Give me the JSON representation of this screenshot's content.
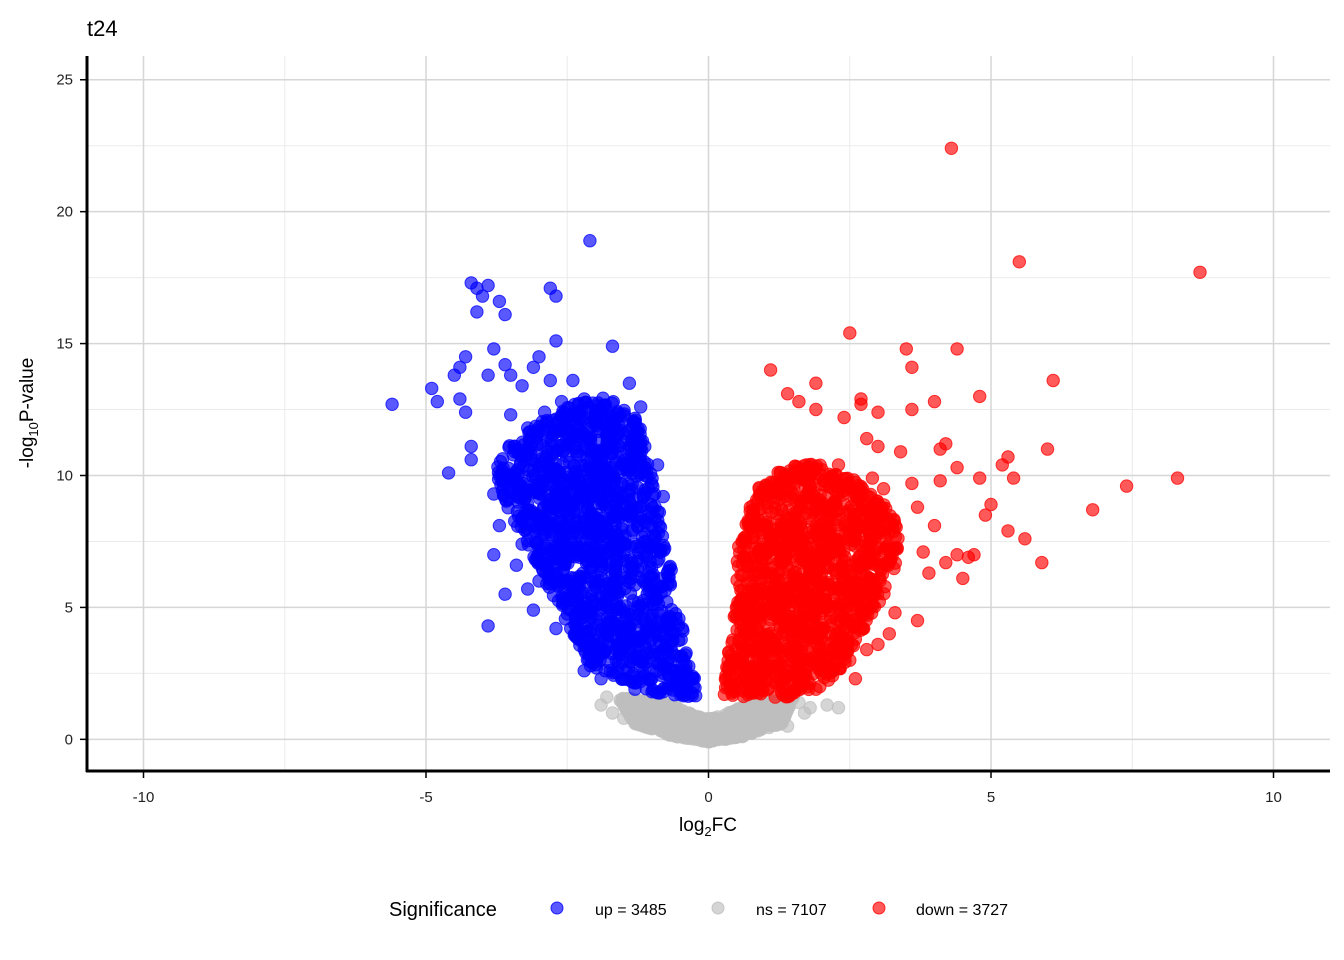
{
  "chart_data": {
    "type": "scatter",
    "title": "t24",
    "xlabel": {
      "base": "log",
      "sub": "2",
      "rest": "FC"
    },
    "ylabel": {
      "base": "-log",
      "sub": "10",
      "rest": "P-value"
    },
    "xlim": [
      -11,
      11
    ],
    "ylim": [
      -1.2,
      25.9
    ],
    "xticks": [
      -10,
      -5,
      0,
      5,
      10
    ],
    "xtick_labels": [
      "-10",
      "-5",
      "0",
      "5",
      "10"
    ],
    "yticks": [
      0,
      5,
      10,
      15,
      20,
      25
    ],
    "ytick_labels": [
      "0",
      "5",
      "10",
      "15",
      "20",
      "25"
    ],
    "grid": true,
    "legend": {
      "title": "Significance",
      "placement": "bottom",
      "entries": [
        {
          "label": "up = 3485",
          "color": "#0000ff"
        },
        {
          "label": "ns = 7107",
          "color": "#bebebe"
        },
        {
          "label": "down = 3727",
          "color": "#ff0000"
        }
      ]
    },
    "series": [
      {
        "name": "up = 3485",
        "color": "#0000ff",
        "count": 3485,
        "outliers": [
          [
            -5.6,
            12.7
          ],
          [
            -4.9,
            13.3
          ],
          [
            -4.8,
            12.8
          ],
          [
            -4.6,
            10.1
          ],
          [
            -4.5,
            13.8
          ],
          [
            -4.4,
            14.1
          ],
          [
            -4.3,
            14.5
          ],
          [
            -4.3,
            12.4
          ],
          [
            -4.2,
            17.3
          ],
          [
            -4.1,
            17.1
          ],
          [
            -4.1,
            16.2
          ],
          [
            -4.0,
            16.8
          ],
          [
            -3.9,
            17.2
          ],
          [
            -3.9,
            13.8
          ],
          [
            -3.8,
            14.8
          ],
          [
            -3.7,
            16.6
          ],
          [
            -3.6,
            16.1
          ],
          [
            -3.6,
            14.2
          ],
          [
            -3.9,
            4.3
          ],
          [
            -3.6,
            5.5
          ],
          [
            -3.5,
            13.8
          ],
          [
            -3.3,
            13.4
          ],
          [
            -3.1,
            14.1
          ],
          [
            -3.1,
            4.9
          ],
          [
            -3.0,
            14.5
          ],
          [
            -2.8,
            13.6
          ],
          [
            -2.8,
            17.1
          ],
          [
            -2.7,
            16.8
          ],
          [
            -2.7,
            15.1
          ],
          [
            -2.7,
            4.2
          ],
          [
            -2.1,
            18.9
          ],
          [
            -1.7,
            14.9
          ],
          [
            -4.2,
            10.6
          ],
          [
            -3.8,
            9.3
          ],
          [
            -3.7,
            8.1
          ],
          [
            -3.8,
            7.0
          ],
          [
            -3.4,
            6.6
          ],
          [
            -3.2,
            5.7
          ],
          [
            -3.3,
            7.4
          ],
          [
            -3.0,
            6.0
          ],
          [
            -2.4,
            13.6
          ],
          [
            -2.2,
            12.9
          ],
          [
            -4.4,
            12.9
          ],
          [
            -4.2,
            11.1
          ],
          [
            -3.5,
            12.3
          ],
          [
            -3.2,
            11.8
          ],
          [
            -2.9,
            12.4
          ],
          [
            -2.6,
            12.8
          ],
          [
            -1.4,
            13.5
          ],
          [
            -1.2,
            12.6
          ],
          [
            -1.2,
            11.3
          ],
          [
            -0.9,
            10.4
          ],
          [
            -0.8,
            9.2
          ],
          [
            -2.3,
            3.8
          ],
          [
            -2.1,
            3.4
          ],
          [
            -2.2,
            2.6
          ],
          [
            -1.9,
            2.3
          ],
          [
            -1.6,
            2.9
          ],
          [
            -1.3,
            1.9
          ],
          [
            -1.0,
            1.8
          ],
          [
            -0.8,
            1.8
          ],
          [
            -0.5,
            1.7
          ],
          [
            -0.7,
            2.4
          ],
          [
            -0.4,
            2.8
          ]
        ],
        "cloud": {
          "polygon": [
            [
              -2.6,
              12.6
            ],
            [
              -1.8,
              13.0
            ],
            [
              -1.2,
              12.0
            ],
            [
              -1.0,
              10.0
            ],
            [
              -0.8,
              8.0
            ],
            [
              -0.6,
              6.0
            ],
            [
              -0.4,
              4.0
            ],
            [
              -0.25,
              2.5
            ],
            [
              -0.2,
              1.6
            ],
            [
              -0.6,
              1.6
            ],
            [
              -1.0,
              1.8
            ],
            [
              -1.6,
              2.2
            ],
            [
              -2.1,
              2.8
            ],
            [
              -2.4,
              4.0
            ],
            [
              -2.7,
              5.2
            ],
            [
              -3.0,
              6.5
            ],
            [
              -3.3,
              7.7
            ],
            [
              -3.6,
              9.0
            ],
            [
              -3.8,
              10.2
            ],
            [
              -3.6,
              11.0
            ],
            [
              -3.1,
              11.8
            ]
          ]
        }
      },
      {
        "name": "ns = 7107",
        "color": "#bebebe",
        "count": 7107,
        "outliers": [
          [
            -1.8,
            1.6
          ],
          [
            -1.9,
            1.3
          ],
          [
            -1.7,
            1.0
          ],
          [
            -1.4,
            1.4
          ],
          [
            -1.5,
            0.8
          ],
          [
            -1.3,
            0.6
          ],
          [
            -1.1,
            1.1
          ],
          [
            -1.0,
            0.4
          ],
          [
            -0.8,
            0.9
          ],
          [
            -0.6,
            1.3
          ],
          [
            0.7,
            1.5
          ],
          [
            1.0,
            1.2
          ],
          [
            1.2,
            0.7
          ],
          [
            1.3,
            1.0
          ],
          [
            1.4,
            0.5
          ],
          [
            1.6,
            1.4
          ],
          [
            1.7,
            1.0
          ],
          [
            1.8,
            1.2
          ],
          [
            2.1,
            1.3
          ],
          [
            2.3,
            1.2
          ]
        ],
        "cloud": {
          "polygon": [
            [
              -1.6,
              1.6
            ],
            [
              -0.8,
              1.4
            ],
            [
              -0.1,
              0.8
            ],
            [
              0.1,
              0.8
            ],
            [
              0.8,
              1.4
            ],
            [
              1.5,
              1.6
            ],
            [
              1.3,
              0.6
            ],
            [
              0.6,
              0.1
            ],
            [
              0.0,
              -0.1
            ],
            [
              -0.6,
              0.1
            ],
            [
              -1.3,
              0.6
            ]
          ]
        }
      },
      {
        "name": "down = 3727",
        "color": "#ff0000",
        "count": 3727,
        "outliers": [
          [
            4.3,
            22.4
          ],
          [
            5.5,
            18.1
          ],
          [
            8.7,
            17.7
          ],
          [
            2.5,
            15.4
          ],
          [
            3.5,
            14.8
          ],
          [
            4.4,
            14.8
          ],
          [
            3.6,
            14.1
          ],
          [
            1.1,
            14.0
          ],
          [
            6.1,
            13.6
          ],
          [
            1.9,
            13.5
          ],
          [
            1.4,
            13.1
          ],
          [
            1.6,
            12.8
          ],
          [
            2.7,
            12.9
          ],
          [
            2.7,
            12.7
          ],
          [
            3.0,
            12.4
          ],
          [
            3.6,
            12.5
          ],
          [
            4.0,
            12.8
          ],
          [
            4.8,
            13.0
          ],
          [
            2.4,
            12.2
          ],
          [
            1.9,
            12.5
          ],
          [
            4.2,
            11.2
          ],
          [
            4.1,
            11.0
          ],
          [
            6.0,
            11.0
          ],
          [
            5.3,
            10.7
          ],
          [
            5.2,
            10.4
          ],
          [
            4.4,
            10.3
          ],
          [
            4.1,
            9.8
          ],
          [
            4.8,
            9.9
          ],
          [
            5.4,
            9.9
          ],
          [
            5.0,
            8.9
          ],
          [
            4.9,
            8.5
          ],
          [
            5.3,
            7.9
          ],
          [
            5.6,
            7.6
          ],
          [
            5.9,
            6.7
          ],
          [
            6.8,
            8.7
          ],
          [
            7.4,
            9.6
          ],
          [
            8.3,
            9.9
          ],
          [
            4.0,
            8.1
          ],
          [
            4.4,
            7.0
          ],
          [
            4.6,
            6.9
          ],
          [
            4.7,
            7.0
          ],
          [
            4.5,
            6.1
          ],
          [
            4.2,
            6.7
          ],
          [
            3.9,
            6.3
          ],
          [
            3.8,
            7.1
          ],
          [
            3.7,
            4.5
          ],
          [
            3.3,
            4.8
          ],
          [
            3.2,
            4.0
          ],
          [
            3.0,
            3.6
          ],
          [
            2.8,
            3.4
          ],
          [
            2.6,
            3.8
          ],
          [
            2.5,
            3.0
          ],
          [
            2.6,
            2.3
          ],
          [
            2.0,
            2.5
          ],
          [
            1.9,
            1.9
          ],
          [
            1.6,
            2.2
          ],
          [
            1.3,
            2.0
          ],
          [
            0.9,
            1.9
          ],
          [
            0.7,
            1.7
          ],
          [
            2.3,
            10.4
          ],
          [
            2.8,
            11.4
          ],
          [
            3.0,
            11.1
          ],
          [
            3.4,
            10.9
          ],
          [
            3.6,
            9.7
          ],
          [
            3.1,
            9.5
          ],
          [
            2.9,
            9.9
          ],
          [
            3.7,
            8.8
          ]
        ],
        "cloud": {
          "polygon": [
            [
              0.25,
              1.6
            ],
            [
              0.3,
              2.6
            ],
            [
              0.4,
              4.0
            ],
            [
              0.5,
              5.6
            ],
            [
              0.5,
              7.2
            ],
            [
              0.7,
              8.6
            ],
            [
              0.9,
              9.6
            ],
            [
              1.4,
              10.5
            ],
            [
              2.2,
              10.4
            ],
            [
              2.8,
              9.5
            ],
            [
              3.3,
              8.5
            ],
            [
              3.4,
              7.0
            ],
            [
              3.1,
              5.4
            ],
            [
              2.7,
              4.0
            ],
            [
              2.4,
              2.8
            ],
            [
              2.0,
              2.0
            ],
            [
              1.4,
              1.6
            ],
            [
              0.8,
              1.6
            ]
          ]
        }
      }
    ]
  }
}
